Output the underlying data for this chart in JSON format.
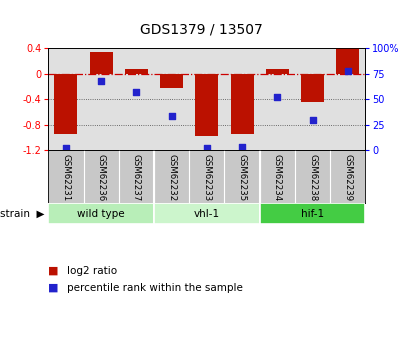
{
  "title": "GDS1379 / 13507",
  "samples": [
    "GSM62231",
    "GSM62236",
    "GSM62237",
    "GSM62232",
    "GSM62233",
    "GSM62235",
    "GSM62234",
    "GSM62238",
    "GSM62239"
  ],
  "log2_ratio": [
    -0.95,
    0.34,
    0.07,
    -0.22,
    -0.98,
    -0.95,
    0.07,
    -0.45,
    0.4
  ],
  "percentile_rank": [
    2,
    68,
    57,
    33,
    2,
    3,
    52,
    30,
    78
  ],
  "groups": [
    {
      "label": "wild type",
      "start": 0,
      "end": 3,
      "color": "#b8eeb8"
    },
    {
      "label": "vhl-1",
      "start": 3,
      "end": 6,
      "color": "#ccf5cc"
    },
    {
      "label": "hif-1",
      "start": 6,
      "end": 9,
      "color": "#44cc44"
    }
  ],
  "ylim_left": [
    -1.2,
    0.4
  ],
  "ylim_right": [
    0,
    100
  ],
  "bar_color": "#bb1100",
  "dot_color": "#2222cc",
  "zero_line_color": "#cc0000",
  "grid_color": "#444444",
  "background_color": "#ffffff",
  "plot_bg_color": "#e0e0e0",
  "sample_label_bg": "#c8c8c8",
  "left_ticks": [
    0.4,
    0.0,
    -0.4,
    -0.8,
    -1.2
  ],
  "left_tick_labels": [
    "0.4",
    "0",
    "-0.4",
    "-0.8",
    "-1.2"
  ],
  "right_ticks": [
    100,
    75,
    50,
    25,
    0
  ],
  "right_tick_labels": [
    "100%",
    "75",
    "50",
    "25",
    "0"
  ],
  "legend_items": [
    "log2 ratio",
    "percentile rank within the sample"
  ]
}
